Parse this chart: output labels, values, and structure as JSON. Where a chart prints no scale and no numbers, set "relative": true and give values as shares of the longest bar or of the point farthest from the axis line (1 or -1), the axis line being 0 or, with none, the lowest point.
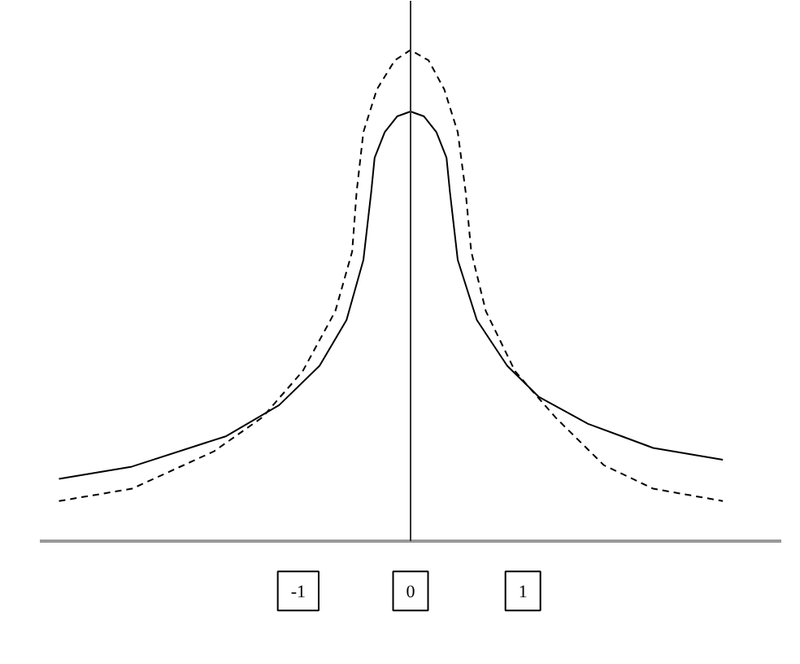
{
  "chart_data": {
    "type": "line",
    "relative": true,
    "xlim": [
      -3.3,
      3.3
    ],
    "xticks": [
      -1,
      0,
      1
    ],
    "tick_labels": "x",
    "marker": "none",
    "series": [
      {
        "color": "#000000",
        "line_style": "solid",
        "x": [
          -3.13,
          -2.48,
          -1.64,
          -1.17,
          -0.81,
          -0.57,
          -0.42,
          -0.35,
          -0.32,
          -0.23,
          -0.12,
          0,
          0.12,
          0.23,
          0.32,
          0.35,
          0.42,
          0.59,
          0.86,
          1.14,
          1.58,
          2.16,
          2.78
        ],
        "values": [
          0.128,
          0.153,
          0.215,
          0.278,
          0.358,
          0.451,
          0.573,
          0.712,
          0.781,
          0.833,
          0.865,
          0.875,
          0.865,
          0.833,
          0.781,
          0.712,
          0.573,
          0.451,
          0.358,
          0.295,
          0.24,
          0.191,
          0.167
        ]
      },
      {
        "color": "#000000",
        "line_style": "dashed",
        "x": [
          -3.13,
          -2.48,
          -1.75,
          -1.32,
          -0.96,
          -0.67,
          -0.52,
          -0.48,
          -0.42,
          -0.3,
          -0.14,
          0,
          0.16,
          0.3,
          0.42,
          0.49,
          0.54,
          0.67,
          0.93,
          1.29,
          1.72,
          2.16,
          2.78
        ],
        "values": [
          0.083,
          0.108,
          0.184,
          0.253,
          0.347,
          0.469,
          0.59,
          0.712,
          0.833,
          0.92,
          0.979,
          1.0,
          0.979,
          0.92,
          0.833,
          0.712,
          0.59,
          0.469,
          0.347,
          0.253,
          0.156,
          0.108,
          0.083
        ]
      }
    ]
  }
}
